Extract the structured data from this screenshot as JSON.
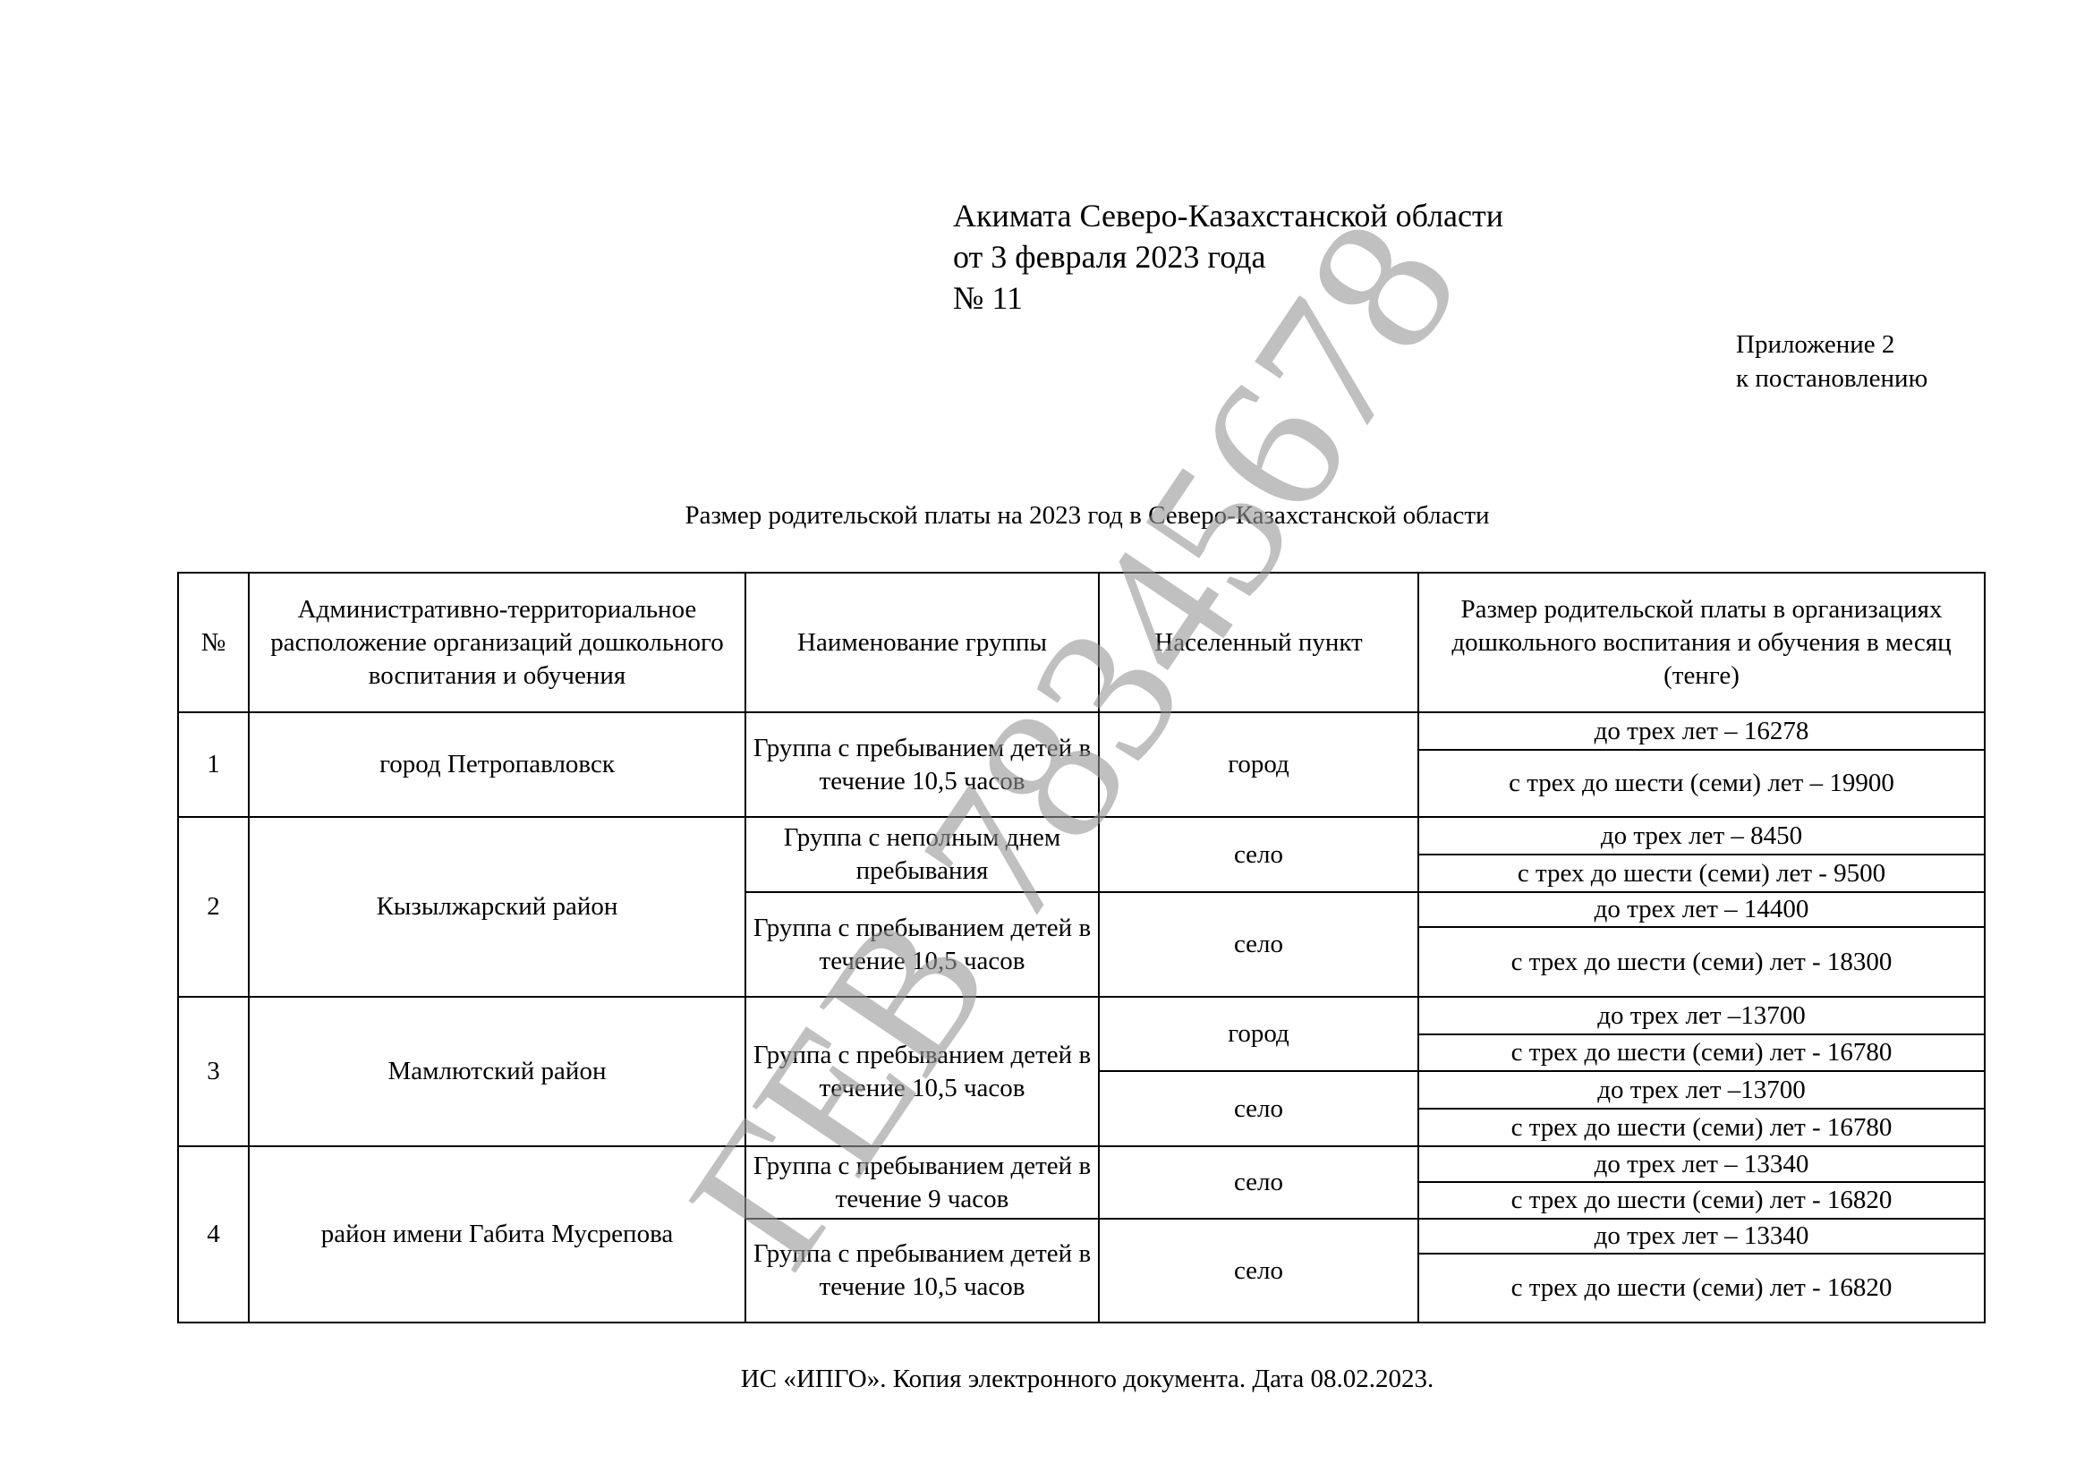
{
  "header": {
    "line1": "Акимата Северо-Казахстанской области",
    "line2": "от 3 февраля 2023 года",
    "line3": "№ 11"
  },
  "appendix": {
    "line1": "Приложение 2",
    "line2": "к постановлению"
  },
  "title": "Размер родительской платы на 2023 год в Северо-Казахстанской области",
  "table": {
    "headers": [
      "№",
      "Административно-территориальное расположение организаций дошкольного воспитания и обучения",
      "Наименование группы",
      "Населенный пункт",
      "Размер родительской платы в организациях дошкольного воспитания и обучения в месяц (тенге)"
    ],
    "rows": [
      {
        "num": "1",
        "district": "город Петропавловск",
        "groups": [
          {
            "name": "Группа с пребыванием детей в течение 10,5 часов",
            "places": [
              {
                "place": "город",
                "fees": [
                  "до трех лет – 16278",
                  "с трех до шести (семи) лет – 19900"
                ]
              }
            ]
          }
        ]
      },
      {
        "num": "2",
        "district": "Кызылжарский район",
        "groups": [
          {
            "name": "Группа с неполным днем пребывания",
            "places": [
              {
                "place": "село",
                "fees": [
                  "до трех лет – 8450",
                  "с трех до шести (семи) лет - 9500"
                ]
              }
            ]
          },
          {
            "name": "Группа с пребыванием детей в течение 10,5 часов",
            "places": [
              {
                "place": "село",
                "fees": [
                  "до трех лет – 14400",
                  "с трех до шести (семи) лет - 18300"
                ]
              }
            ]
          }
        ]
      },
      {
        "num": "3",
        "district": "Мамлютский район",
        "groups": [
          {
            "name": "Группа с пребыванием детей в течение 10,5 часов",
            "places": [
              {
                "place": "город",
                "fees": [
                  "до трех лет –13700",
                  "с трех до шести (семи) лет - 16780"
                ]
              },
              {
                "place": "село",
                "fees": [
                  "до трех лет –13700",
                  "с трех до шести (семи) лет - 16780"
                ]
              }
            ]
          }
        ]
      },
      {
        "num": "4",
        "district": "район имени Габита Мусрепова",
        "groups": [
          {
            "name": "Группа с пребыванием детей в течение 9 часов",
            "places": [
              {
                "place": "село",
                "fees": [
                  "до трех лет – 13340",
                  "с трех до шести (семи) лет - 16820"
                ]
              }
            ]
          },
          {
            "name": "Группа с пребыванием детей в течение 10,5 часов",
            "places": [
              {
                "place": "село",
                "fees": [
                  "до трех лет – 13340",
                  "с трех до шести (семи) лет - 16820"
                ]
              }
            ]
          }
        ]
      }
    ]
  },
  "watermark": "ГЕВ 78345678",
  "footer": "ИС «ИПГО». Копия электронного документа. Дата  08.02.2023."
}
